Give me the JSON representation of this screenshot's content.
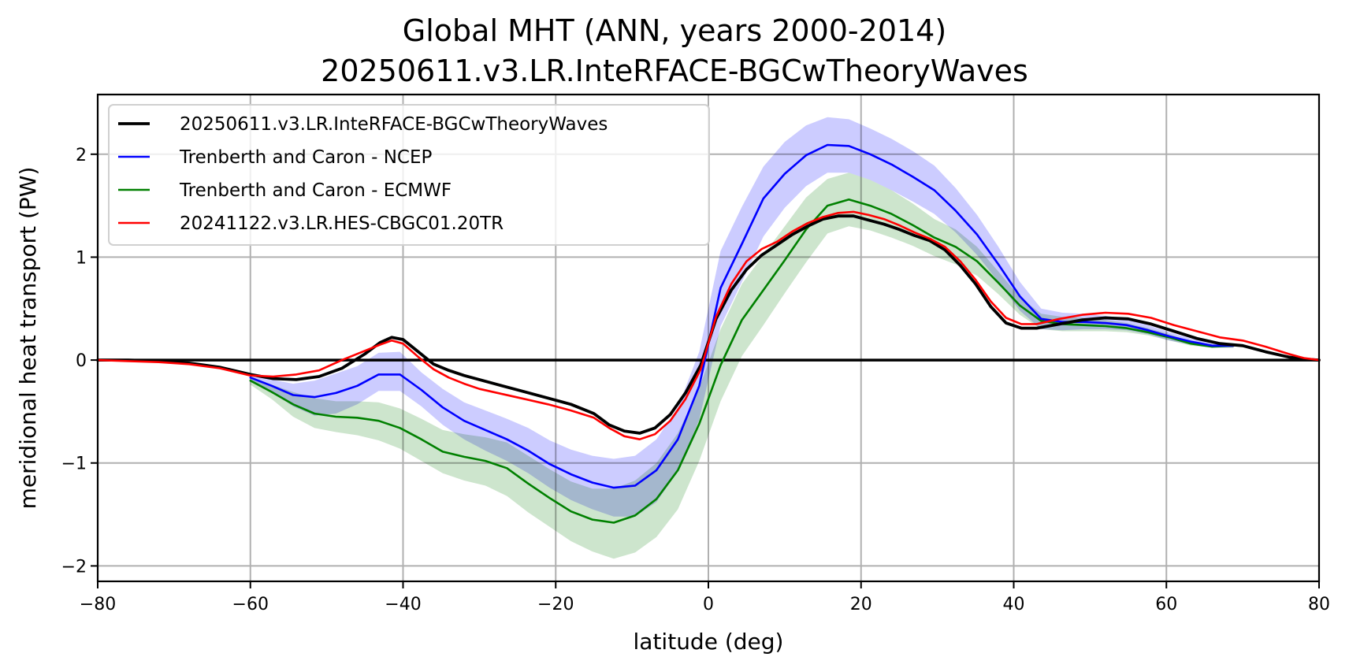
{
  "chart_data": {
    "type": "line",
    "title": "Global MHT (ANN, years 2000-2014)",
    "subtitle": "20250611.v3.LR.InteRFACE-BGCwTheoryWaves",
    "xlabel": "latitude (deg)",
    "ylabel": "meridional heat transport (PW)",
    "xlim": [
      -80,
      80
    ],
    "ylim": [
      -2.15,
      2.58
    ],
    "xticks": [
      -80,
      -60,
      -40,
      -20,
      0,
      20,
      40,
      60,
      80
    ],
    "xtick_labels": [
      "−80",
      "−60",
      "−40",
      "−20",
      "0",
      "20",
      "40",
      "60",
      "80"
    ],
    "yticks": [
      -2,
      -1,
      0,
      1,
      2
    ],
    "ytick_labels": [
      "−2",
      "−1",
      "0",
      "1",
      "2"
    ],
    "grid": true,
    "zero_line": true,
    "legend_position": "top-left",
    "series": [
      {
        "name": "20250611.v3.LR.InteRFACE-BGCwTheoryWaves",
        "color": "#000000",
        "x": [
          -80,
          -76,
          -72,
          -68,
          -64,
          -60,
          -57,
          -54,
          -51,
          -48,
          -45,
          -43,
          -41.5,
          -40,
          -38,
          -36,
          -34,
          -32,
          -30,
          -27,
          -24,
          -21,
          -18,
          -15,
          -13,
          -11,
          -9,
          -7,
          -5,
          -3,
          -1,
          1,
          3,
          5,
          7,
          9,
          11,
          13,
          15,
          17,
          19,
          21,
          23,
          25,
          27,
          29,
          31,
          33,
          35,
          37,
          39,
          41,
          43,
          46,
          49,
          52,
          55,
          58,
          61,
          64,
          67,
          70,
          73,
          76,
          78,
          80
        ],
        "y": [
          0,
          0,
          -0.01,
          -0.03,
          -0.07,
          -0.14,
          -0.18,
          -0.19,
          -0.16,
          -0.08,
          0.06,
          0.17,
          0.22,
          0.2,
          0.08,
          -0.04,
          -0.1,
          -0.15,
          -0.19,
          -0.25,
          -0.31,
          -0.37,
          -0.43,
          -0.52,
          -0.63,
          -0.69,
          -0.71,
          -0.66,
          -0.53,
          -0.32,
          -0.05,
          0.4,
          0.68,
          0.88,
          1.02,
          1.12,
          1.22,
          1.3,
          1.37,
          1.4,
          1.4,
          1.36,
          1.32,
          1.27,
          1.21,
          1.16,
          1.07,
          0.92,
          0.74,
          0.52,
          0.36,
          0.31,
          0.31,
          0.35,
          0.39,
          0.41,
          0.4,
          0.35,
          0.28,
          0.21,
          0.16,
          0.14,
          0.08,
          0.03,
          0.01,
          0.0
        ],
        "linewidth": "thick"
      },
      {
        "name": "Trenberth and Caron - NCEP",
        "color": "#0000ff",
        "band_color": "#ccccff",
        "x": [
          -60,
          -57.2,
          -54.4,
          -51.6,
          -48.8,
          -46,
          -43.2,
          -40.4,
          -37.6,
          -34.8,
          -32,
          -29.2,
          -26.4,
          -23.6,
          -20.8,
          -18,
          -15.2,
          -12.4,
          -9.6,
          -6.8,
          -4,
          -1.2,
          1.6,
          4.4,
          7.2,
          10,
          12.8,
          15.6,
          18.4,
          21.2,
          24,
          26.8,
          29.6,
          32.4,
          35.2,
          38,
          40.8,
          43.6,
          46.4,
          49.2,
          52,
          54.8,
          57.6,
          60.4,
          63.2,
          66,
          68.8
        ],
        "y": [
          -0.17,
          -0.25,
          -0.34,
          -0.36,
          -0.32,
          -0.25,
          -0.14,
          -0.14,
          -0.29,
          -0.46,
          -0.59,
          -0.68,
          -0.77,
          -0.88,
          -1.01,
          -1.11,
          -1.19,
          -1.24,
          -1.22,
          -1.07,
          -0.77,
          -0.25,
          0.7,
          1.13,
          1.57,
          1.81,
          1.99,
          2.09,
          2.08,
          2.0,
          1.9,
          1.78,
          1.65,
          1.45,
          1.22,
          0.93,
          0.62,
          0.4,
          0.37,
          0.37,
          0.36,
          0.34,
          0.29,
          0.23,
          0.18,
          0.14,
          0.14
        ],
        "y_lower": [
          -0.19,
          -0.31,
          -0.45,
          -0.54,
          -0.52,
          -0.43,
          -0.3,
          -0.3,
          -0.45,
          -0.63,
          -0.77,
          -0.88,
          -0.98,
          -1.1,
          -1.24,
          -1.36,
          -1.45,
          -1.52,
          -1.52,
          -1.38,
          -1.08,
          -0.58,
          0.33,
          0.76,
          1.2,
          1.48,
          1.69,
          1.82,
          1.82,
          1.75,
          1.65,
          1.54,
          1.42,
          1.24,
          1.02,
          0.76,
          0.48,
          0.3,
          0.29,
          0.3,
          0.3,
          0.29,
          0.25,
          0.19,
          0.15,
          0.12,
          0.12
        ],
        "y_upper": [
          -0.15,
          -0.19,
          -0.23,
          -0.2,
          -0.13,
          -0.06,
          0.07,
          0.08,
          -0.12,
          -0.28,
          -0.41,
          -0.49,
          -0.57,
          -0.66,
          -0.78,
          -0.87,
          -0.93,
          -0.96,
          -0.93,
          -0.77,
          -0.46,
          0.08,
          1.06,
          1.49,
          1.88,
          2.12,
          2.28,
          2.36,
          2.34,
          2.25,
          2.15,
          2.03,
          1.89,
          1.67,
          1.41,
          1.1,
          0.76,
          0.5,
          0.46,
          0.45,
          0.43,
          0.4,
          0.34,
          0.27,
          0.21,
          0.17,
          0.16
        ]
      },
      {
        "name": "Trenberth and Caron - ECMWF",
        "color": "#008000",
        "band_color": "#cde5cd",
        "x": [
          -60,
          -57.2,
          -54.4,
          -51.6,
          -48.8,
          -46,
          -43.2,
          -40.4,
          -37.6,
          -34.8,
          -32,
          -29.2,
          -26.4,
          -23.6,
          -20.8,
          -18,
          -15.2,
          -12.4,
          -9.6,
          -6.8,
          -4,
          -1.2,
          1.6,
          4.4,
          7.2,
          10,
          12.8,
          15.6,
          18.4,
          21.2,
          24,
          26.8,
          29.6,
          32.4,
          35.2,
          38,
          40.8,
          43.6,
          46.4,
          49.2,
          52,
          54.8,
          57.6,
          60.4,
          63.2,
          66,
          68.8
        ],
        "y": [
          -0.2,
          -0.31,
          -0.43,
          -0.52,
          -0.55,
          -0.56,
          -0.59,
          -0.66,
          -0.77,
          -0.89,
          -0.94,
          -0.98,
          -1.05,
          -1.2,
          -1.34,
          -1.47,
          -1.55,
          -1.58,
          -1.51,
          -1.35,
          -1.07,
          -0.62,
          -0.05,
          0.39,
          0.68,
          0.97,
          1.27,
          1.5,
          1.56,
          1.5,
          1.42,
          1.31,
          1.19,
          1.1,
          0.96,
          0.75,
          0.53,
          0.38,
          0.35,
          0.34,
          0.33,
          0.31,
          0.27,
          0.22,
          0.16,
          0.13,
          0.14
        ],
        "y_lower": [
          -0.24,
          -0.38,
          -0.55,
          -0.66,
          -0.7,
          -0.73,
          -0.78,
          -0.86,
          -0.98,
          -1.1,
          -1.17,
          -1.22,
          -1.32,
          -1.48,
          -1.62,
          -1.76,
          -1.86,
          -1.93,
          -1.87,
          -1.72,
          -1.45,
          -0.98,
          -0.4,
          0.04,
          0.34,
          0.65,
          0.95,
          1.23,
          1.3,
          1.26,
          1.19,
          1.11,
          1.01,
          0.93,
          0.82,
          0.64,
          0.44,
          0.3,
          0.28,
          0.28,
          0.28,
          0.27,
          0.24,
          0.19,
          0.14,
          0.12,
          0.12
        ],
        "y_upper": [
          -0.16,
          -0.24,
          -0.31,
          -0.37,
          -0.4,
          -0.4,
          -0.41,
          -0.47,
          -0.57,
          -0.68,
          -0.72,
          -0.75,
          -0.8,
          -0.93,
          -1.06,
          -1.18,
          -1.25,
          -1.25,
          -1.17,
          -1.0,
          -0.71,
          -0.27,
          0.3,
          0.74,
          1.02,
          1.3,
          1.58,
          1.76,
          1.82,
          1.75,
          1.65,
          1.52,
          1.37,
          1.27,
          1.1,
          0.86,
          0.61,
          0.45,
          0.42,
          0.41,
          0.39,
          0.36,
          0.31,
          0.25,
          0.18,
          0.15,
          0.16
        ]
      },
      {
        "name": "20241122.v3.LR.HES-CBGC01.20TR",
        "color": "#ff0000",
        "x": [
          -80,
          -76,
          -72,
          -68,
          -64,
          -60,
          -57,
          -54,
          -51,
          -48,
          -45,
          -43,
          -41.5,
          -40,
          -38,
          -36,
          -34,
          -32,
          -30,
          -27,
          -24,
          -21,
          -18,
          -15,
          -13,
          -11,
          -9,
          -7,
          -5,
          -3,
          -1,
          1,
          3,
          5,
          7,
          9,
          11,
          13,
          15,
          17,
          19,
          21,
          23,
          25,
          27,
          29,
          31,
          33,
          35,
          37,
          39,
          41,
          43,
          46,
          49,
          52,
          55,
          58,
          61,
          64,
          67,
          70,
          73,
          76,
          78,
          80
        ],
        "y": [
          0,
          -0.01,
          -0.02,
          -0.04,
          -0.08,
          -0.15,
          -0.16,
          -0.14,
          -0.1,
          0.0,
          0.09,
          0.15,
          0.19,
          0.16,
          0.03,
          -0.09,
          -0.17,
          -0.23,
          -0.28,
          -0.33,
          -0.38,
          -0.43,
          -0.49,
          -0.56,
          -0.66,
          -0.74,
          -0.77,
          -0.72,
          -0.59,
          -0.38,
          -0.09,
          0.42,
          0.74,
          0.96,
          1.08,
          1.15,
          1.25,
          1.33,
          1.39,
          1.43,
          1.44,
          1.41,
          1.37,
          1.31,
          1.24,
          1.18,
          1.1,
          0.96,
          0.78,
          0.57,
          0.41,
          0.35,
          0.35,
          0.4,
          0.44,
          0.46,
          0.45,
          0.41,
          0.34,
          0.28,
          0.22,
          0.19,
          0.13,
          0.06,
          0.02,
          0.0
        ],
        "linewidth": "normal"
      }
    ]
  }
}
